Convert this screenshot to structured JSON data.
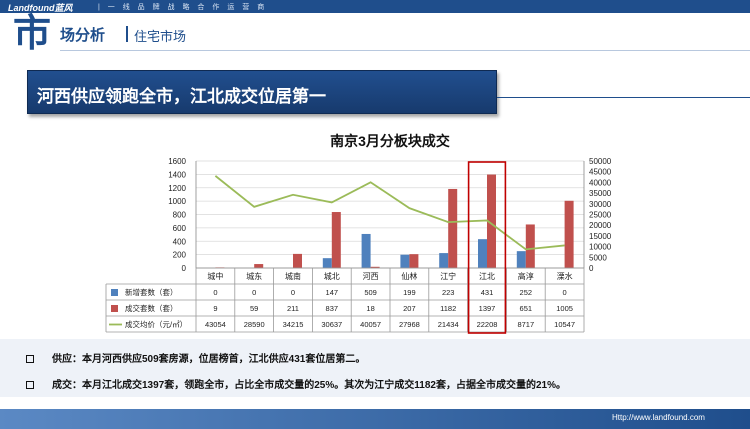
{
  "header": {
    "brand": "Landfound蓝风",
    "slogan": "| 一 线 品 牌 战 略 合 作 运 营 商",
    "big_char": "市",
    "title": "场分析",
    "subtitle": "住宅市场"
  },
  "banner": {
    "text": "河西供应领跑全市，江北成交位居第一"
  },
  "chart_data": {
    "type": "bar",
    "title": "南京3月分板块成交",
    "categories": [
      "城中",
      "城东",
      "城南",
      "城北",
      "河西",
      "仙林",
      "江宁",
      "江北",
      "高淳",
      "溧水"
    ],
    "y_left": {
      "min": 0,
      "max": 1600,
      "ticks": [
        "0",
        "200",
        "400",
        "600",
        "800",
        "1000",
        "1200",
        "1400",
        "1600"
      ]
    },
    "y_right": {
      "min": 0,
      "max": 50000,
      "ticks": [
        "0",
        "5000",
        "10000",
        "15000",
        "20000",
        "25000",
        "30000",
        "35000",
        "40000",
        "45000",
        "50000"
      ]
    },
    "series": [
      {
        "name": "新增套数（套）",
        "kind": "bar",
        "axis": "left",
        "color": "#4f81bd",
        "values": [
          0,
          0,
          0,
          147,
          509,
          199,
          223,
          431,
          252,
          0
        ]
      },
      {
        "name": "成交套数（套）",
        "kind": "bar",
        "axis": "left",
        "color": "#c0504d",
        "values": [
          9,
          59,
          211,
          837,
          18,
          207,
          1182,
          1397,
          651,
          1005
        ]
      },
      {
        "name": "成交均价（元/㎡）",
        "kind": "line",
        "axis": "right",
        "color": "#9bbb59",
        "values": [
          43054,
          28590,
          34215,
          30637,
          40057,
          27968,
          21434,
          22208,
          8717,
          10547
        ]
      }
    ],
    "highlight_category": "江北",
    "grid": true
  },
  "bullets": [
    {
      "text": "供应：本月河西供应509套房源，位居榜首，江北供应431套位居第二。"
    },
    {
      "text": "成交：本月江北成交1397套，领跑全市，占比全市成交量的25%。其次为江宁成交1182套，占据全市成交量的21%。"
    }
  ],
  "footer": {
    "url": "Http://www.landfound.com"
  },
  "colors": {
    "brand": "#1f4e8c",
    "highlight": "#c00000"
  }
}
